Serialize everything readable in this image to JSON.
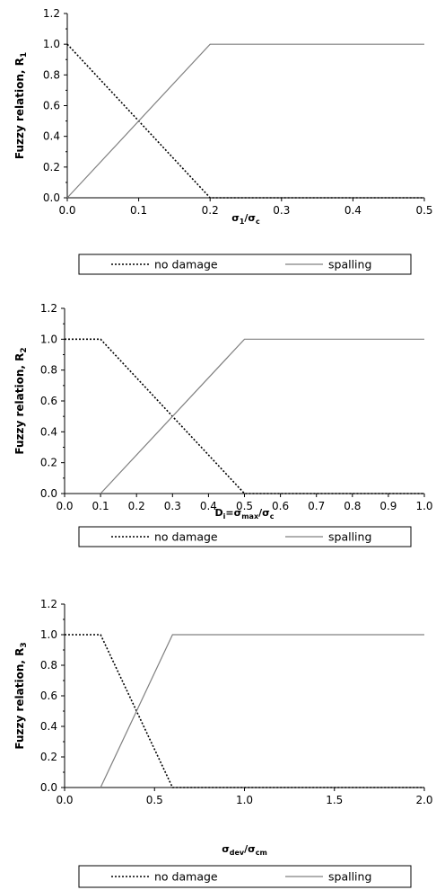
{
  "chart_data": [
    {
      "type": "line",
      "xlabel_parts": [
        [
          "σ",
          ""
        ],
        [
          "1",
          "sub"
        ],
        [
          "/σ",
          ""
        ],
        [
          "c",
          "sub"
        ]
      ],
      "ylabel": "Fuzzy relation, R",
      "ylabel_sub": "1",
      "xlim": [
        0,
        0.5
      ],
      "ylim": [
        0,
        1.2
      ],
      "xticks": [
        "0.0",
        "0.1",
        "0.2",
        "0.3",
        "0.4",
        "0.5"
      ],
      "yticks": [
        "0.0",
        "0.2",
        "0.4",
        "0.6",
        "0.8",
        "1.0",
        "1.2"
      ],
      "legend_position": "bottom",
      "series": [
        {
          "name": "no damage",
          "style": "dotted",
          "x": [
            0,
            0.2,
            0.5
          ],
          "y": [
            1,
            0,
            0
          ]
        },
        {
          "name": "spalling",
          "style": "solid",
          "color": "#808080",
          "x": [
            0,
            0.2,
            0.5
          ],
          "y": [
            0,
            1,
            1
          ]
        }
      ]
    },
    {
      "type": "line",
      "xlabel_parts": [
        [
          "D",
          ""
        ],
        [
          "i",
          "sub"
        ],
        [
          "=σ",
          ""
        ],
        [
          "max",
          "sub"
        ],
        [
          "/σ",
          ""
        ],
        [
          "c",
          "sub"
        ]
      ],
      "ylabel": "Fuzzy relation, R",
      "ylabel_sub": "2",
      "xlim": [
        0,
        1.0
      ],
      "ylim": [
        0,
        1.2
      ],
      "xticks": [
        "0.0",
        "0.1",
        "0.2",
        "0.3",
        "0.4",
        "0.5",
        "0.6",
        "0.7",
        "0.8",
        "0.9",
        "1.0"
      ],
      "yticks": [
        "0.0",
        "0.2",
        "0.4",
        "0.6",
        "0.8",
        "1.0",
        "1.2"
      ],
      "legend_position": "bottom",
      "series": [
        {
          "name": "no damage",
          "style": "dotted",
          "x": [
            0,
            0.1,
            0.5,
            1.0
          ],
          "y": [
            1,
            1,
            0,
            0
          ]
        },
        {
          "name": "spalling",
          "style": "solid",
          "color": "#808080",
          "x": [
            0.1,
            0.5,
            1.0
          ],
          "y": [
            0,
            1,
            1
          ]
        }
      ]
    },
    {
      "type": "line",
      "xlabel_parts": [
        [
          "σ",
          ""
        ],
        [
          "dev",
          "sub"
        ],
        [
          "/σ",
          ""
        ],
        [
          "cm",
          "sub"
        ]
      ],
      "ylabel": "Fuzzy relation, R",
      "ylabel_sub": "3",
      "xlim": [
        0,
        2.0
      ],
      "ylim": [
        0,
        1.2
      ],
      "xticks": [
        "0.0",
        "0.5",
        "1.0",
        "1.5",
        "2.0"
      ],
      "yticks": [
        "0.0",
        "0.2",
        "0.4",
        "0.6",
        "0.8",
        "1.0",
        "1.2"
      ],
      "legend_position": "bottom",
      "series": [
        {
          "name": "no damage",
          "style": "dotted",
          "x": [
            0,
            0.2,
            0.6,
            2.0
          ],
          "y": [
            1,
            1,
            0,
            0
          ]
        },
        {
          "name": "spalling",
          "style": "solid",
          "color": "#808080",
          "x": [
            0.2,
            0.6,
            2.0
          ],
          "y": [
            0,
            1,
            1
          ]
        }
      ]
    }
  ]
}
